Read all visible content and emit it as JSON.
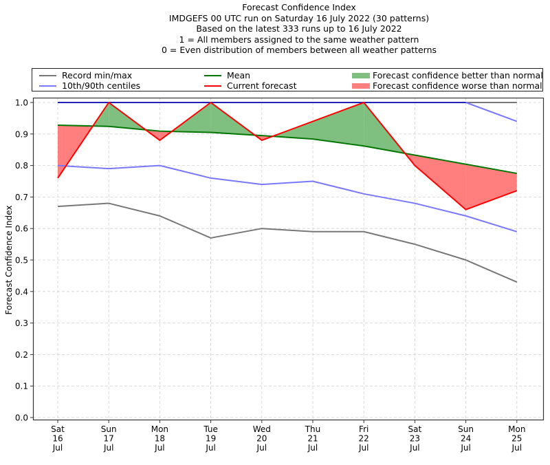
{
  "title_lines": [
    "Forecast Confidence Index",
    "IMDGEFS 00 UTC run on Saturday 16 July 2022 (30 patterns)",
    "Based on the latest 333 runs up to 16 July 2022",
    "1 = All members assigned to the same weather pattern",
    "0 = Even distribution of members between all weather patterns"
  ],
  "legend": {
    "record": "Record min/max",
    "centiles": "10th/90th centiles",
    "mean": "Mean",
    "current": "Current forecast",
    "better": "Forecast confidence better than normal",
    "worse": "Forecast confidence worse than normal"
  },
  "colors": {
    "record": "#777777",
    "centiles": "#7777ff",
    "overlap_top": "#2222bb",
    "mean": "#007700",
    "current": "#ff0000",
    "better_fill": "#7fbf7f",
    "worse_fill": "#ff7f7f",
    "grid": "#d0d0d0"
  },
  "chart_data": {
    "type": "line",
    "title": "Forecast Confidence Index",
    "xlabel": "",
    "ylabel": "Forecast Confidence Index",
    "ylim": [
      0.0,
      1.0
    ],
    "yticks": [
      "0.0",
      "0.1",
      "0.2",
      "0.3",
      "0.4",
      "0.5",
      "0.6",
      "0.7",
      "0.8",
      "0.9",
      "1.0"
    ],
    "grid": true,
    "legend_position": "top (above plot)",
    "categories": [
      [
        "Sat",
        "16",
        "Jul"
      ],
      [
        "Sun",
        "17",
        "Jul"
      ],
      [
        "Mon",
        "18",
        "Jul"
      ],
      [
        "Tue",
        "19",
        "Jul"
      ],
      [
        "Wed",
        "20",
        "Jul"
      ],
      [
        "Thu",
        "21",
        "Jul"
      ],
      [
        "Fri",
        "22",
        "Jul"
      ],
      [
        "Sat",
        "23",
        "Jul"
      ],
      [
        "Sun",
        "24",
        "Jul"
      ],
      [
        "Mon",
        "25",
        "Jul"
      ]
    ],
    "series": [
      {
        "name": "Record max",
        "key": "record",
        "values": [
          1.0,
          1.0,
          1.0,
          1.0,
          1.0,
          1.0,
          1.0,
          1.0,
          1.0,
          1.0
        ]
      },
      {
        "name": "Record min",
        "key": "record",
        "values": [
          0.67,
          0.68,
          0.64,
          0.57,
          0.6,
          0.59,
          0.59,
          0.55,
          0.5,
          0.43
        ]
      },
      {
        "name": "90th centile",
        "key": "centiles",
        "values": [
          1.0,
          1.0,
          1.0,
          1.0,
          1.0,
          1.0,
          1.0,
          1.0,
          1.0,
          0.94
        ]
      },
      {
        "name": "10th centile",
        "key": "centiles",
        "values": [
          0.8,
          0.79,
          0.8,
          0.76,
          0.74,
          0.75,
          0.71,
          0.68,
          0.64,
          0.59
        ]
      },
      {
        "name": "Mean",
        "key": "mean",
        "values": [
          0.928,
          0.924,
          0.909,
          0.905,
          0.895,
          0.884,
          0.862,
          0.833,
          0.804,
          0.775
        ]
      },
      {
        "name": "Current forecast",
        "key": "current",
        "values": [
          0.76,
          1.0,
          0.88,
          1.0,
          0.88,
          0.94,
          1.0,
          0.8,
          0.66,
          0.72
        ]
      }
    ]
  }
}
